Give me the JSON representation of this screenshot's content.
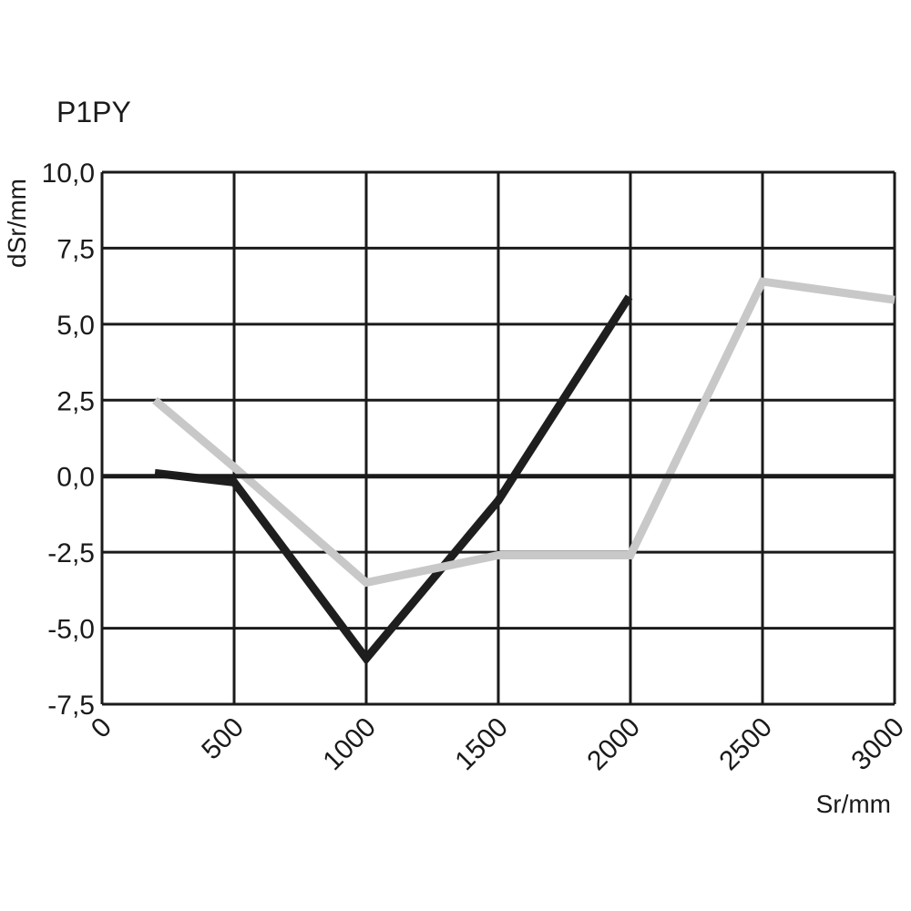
{
  "chart_data": {
    "type": "line",
    "title": "P1PY",
    "xlabel": "Sr/mm",
    "ylabel": "dSr/mm",
    "xlim": [
      0,
      3000
    ],
    "ylim": [
      -7.5,
      10.0
    ],
    "x_ticks": [
      0,
      500,
      1000,
      1500,
      2000,
      2500,
      3000
    ],
    "x_tick_labels": [
      "0",
      "500",
      "1000",
      "1500",
      "2000",
      "2500",
      "3000"
    ],
    "y_ticks": [
      -7.5,
      -5.0,
      -2.5,
      0.0,
      2.5,
      5.0,
      7.5,
      10.0
    ],
    "y_tick_labels": [
      "-7,5",
      "-5,0",
      "-2,5",
      "0,0",
      "2,5",
      "5,0",
      "7,5",
      "10,0"
    ],
    "grid": true,
    "zero_line": true,
    "series": [
      {
        "color": "#1e1e1e",
        "x": [
          200,
          500,
          1000,
          1500,
          1995
        ],
        "y": [
          0.1,
          -0.2,
          -6.0,
          -0.8,
          5.9
        ]
      },
      {
        "color": "#c8c8c8",
        "x": [
          200,
          500,
          1000,
          1500,
          2000,
          2500,
          3000
        ],
        "y": [
          2.5,
          0.3,
          -3.5,
          -2.6,
          -2.6,
          6.4,
          5.8
        ]
      }
    ]
  }
}
